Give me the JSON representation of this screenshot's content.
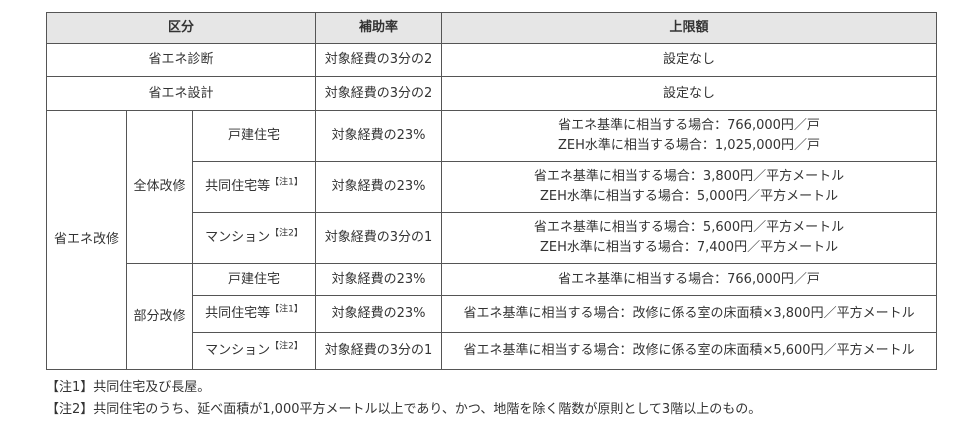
{
  "table": {
    "headers": [
      "区分",
      "補助率",
      "上限額"
    ],
    "rows": {
      "shindan": {
        "category": "省エネ診断",
        "rate": "対象経費の3分の2",
        "limit": "設定なし"
      },
      "sekkei": {
        "category": "省エネ設計",
        "rate": "対象経費の3分の2",
        "limit": "設定なし"
      },
      "kaishu": {
        "label": "省エネ改修",
        "zentai": {
          "label": "全体改修",
          "kodate": {
            "type": "戸建住宅",
            "rate": "対象経費の23%",
            "limit1": "省エネ基準に相当する場合：766,000円／戸",
            "limit2": "ZEH水準に相当する場合：1,025,000円／戸"
          },
          "kyodo": {
            "type": "共同住宅等",
            "note": "【注1】",
            "rate": "対象経費の23%",
            "limit1": "省エネ基準に相当する場合：3,800円／平方メートル",
            "limit2": "ZEH水準に相当する場合：5,000円／平方メートル"
          },
          "mansion": {
            "type": "マンション",
            "note": "【注2】",
            "rate": "対象経費の3分の1",
            "limit1": "省エネ基準に相当する場合：5,600円／平方メートル",
            "limit2": "ZEH水準に相当する場合：7,400円／平方メートル"
          }
        },
        "bubun": {
          "label": "部分改修",
          "kodate": {
            "type": "戸建住宅",
            "rate": "対象経費の23%",
            "limit": "省エネ基準に相当する場合：766,000円／戸"
          },
          "kyodo": {
            "type": "共同住宅等",
            "note": "【注1】",
            "rate": "対象経費の23%",
            "limit": "省エネ基準に相当する場合：改修に係る室の床面積×3,800円／平方メートル"
          },
          "mansion": {
            "type": "マンション",
            "note": "【注2】",
            "rate": "対象経費の3分の1",
            "limit": "省エネ基準に相当する場合：改修に係る室の床面積×5,600円／平方メートル"
          }
        }
      }
    }
  },
  "notes": [
    "【注1】共同住宅及び長屋。",
    "【注2】共同住宅のうち、延べ面積が1,000平方メートル以上であり、かつ、地階を除く階数が原則として3階以上のもの。"
  ]
}
